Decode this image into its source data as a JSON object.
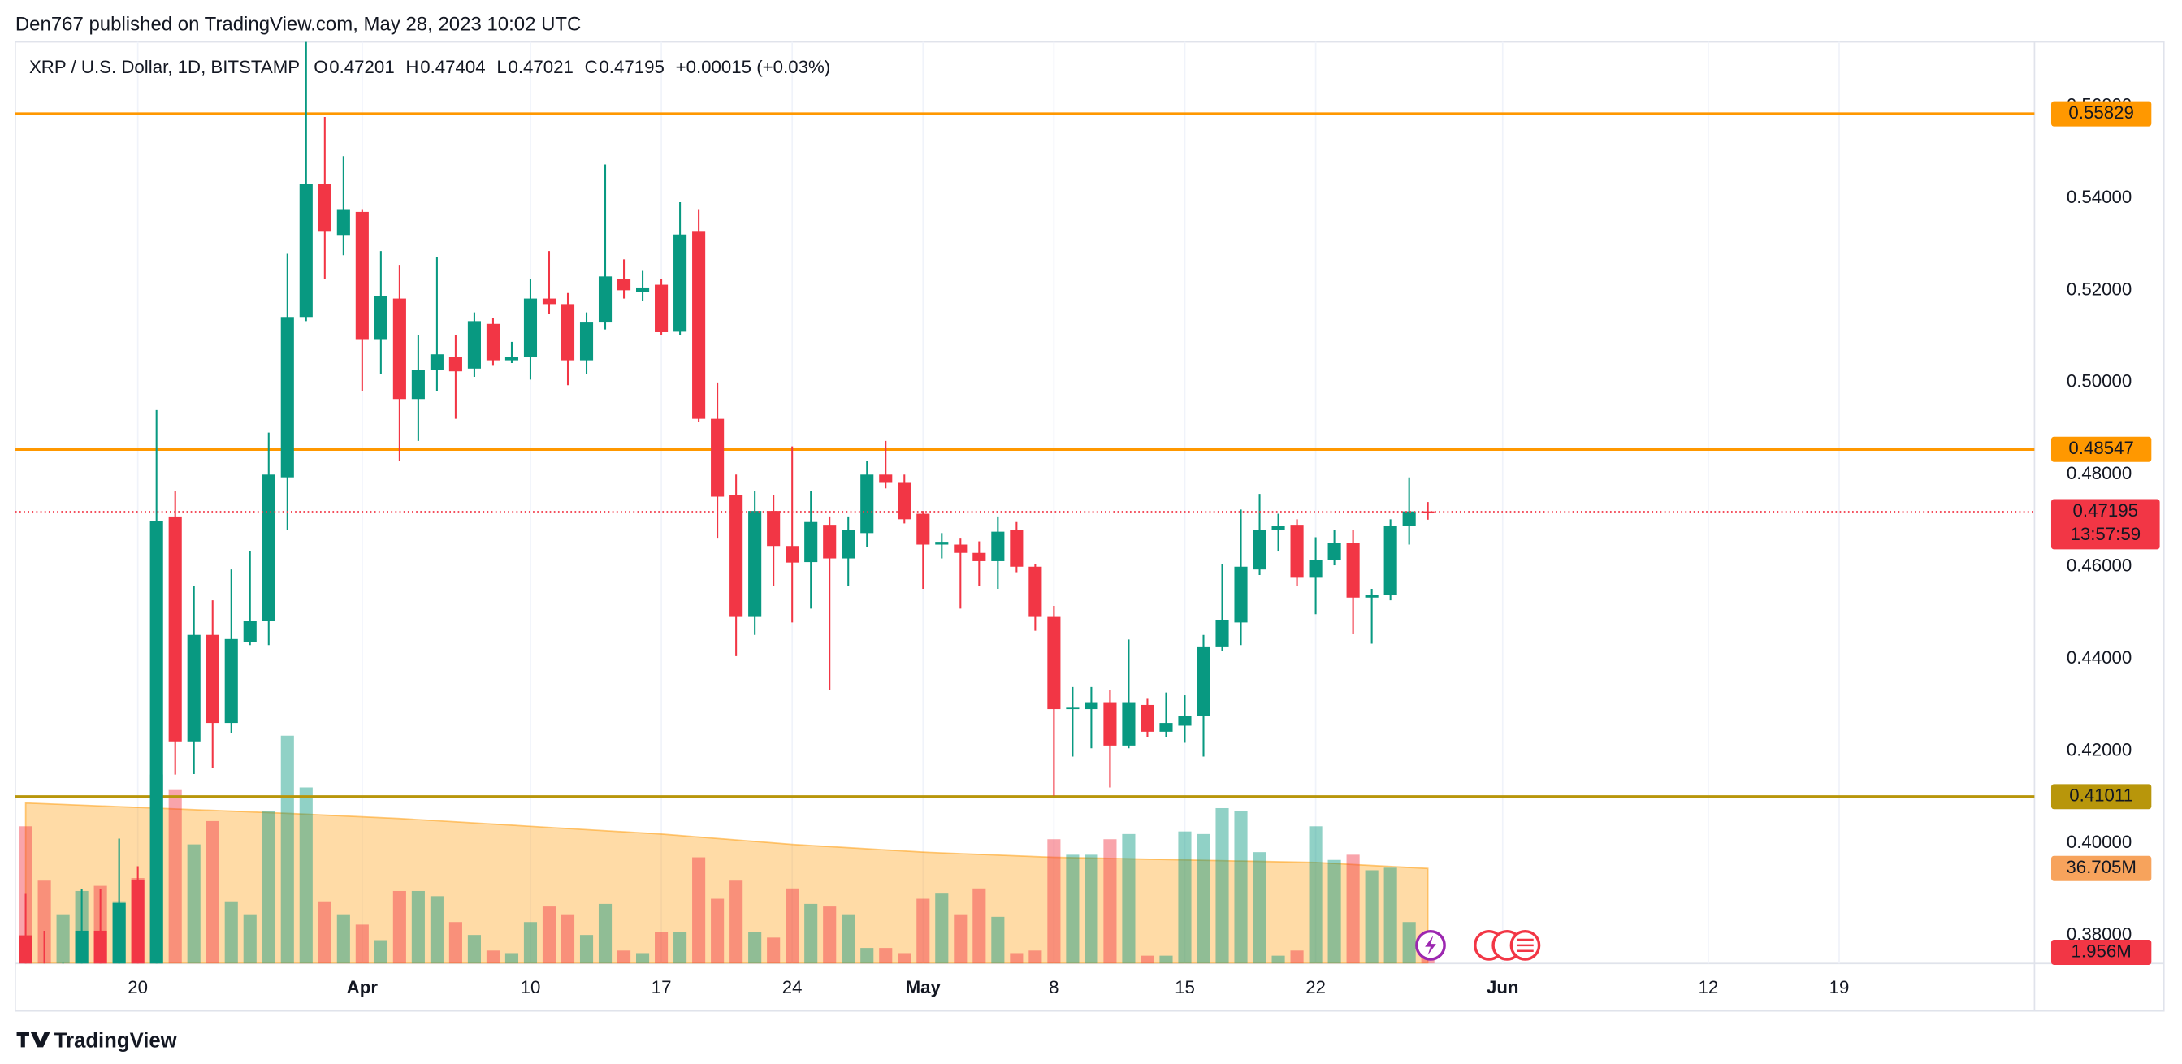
{
  "publisher": "Den767 published on TradingView.com, May 28, 2023 10:02 UTC",
  "brand": "TradingView",
  "chart_data": {
    "type": "candlestick",
    "title": "XRP / U.S. Dollar, 1D, BITSTAMP",
    "ohlc_labels": [
      "O",
      "H",
      "L",
      "C"
    ],
    "change": "+0.00015 (+0.03%)",
    "countdown": "13:57:59",
    "up_color": "#089981",
    "down_color": "#f23645",
    "x": [
      "2023-03-14",
      "2023-03-15",
      "2023-03-16",
      "2023-03-17",
      "2023-03-18",
      "2023-03-19",
      "2023-03-20",
      "2023-03-21",
      "2023-03-22",
      "2023-03-23",
      "2023-03-24",
      "2023-03-25",
      "2023-03-26",
      "2023-03-27",
      "2023-03-28",
      "2023-03-29",
      "2023-03-30",
      "2023-03-31",
      "2023-04-01",
      "2023-04-02",
      "2023-04-03",
      "2023-04-04",
      "2023-04-05",
      "2023-04-06",
      "2023-04-07",
      "2023-04-08",
      "2023-04-09",
      "2023-04-10",
      "2023-04-11",
      "2023-04-12",
      "2023-04-13",
      "2023-04-14",
      "2023-04-15",
      "2023-04-16",
      "2023-04-17",
      "2023-04-18",
      "2023-04-19",
      "2023-04-20",
      "2023-04-21",
      "2023-04-22",
      "2023-04-23",
      "2023-04-24",
      "2023-04-25",
      "2023-04-26",
      "2023-04-27",
      "2023-04-28",
      "2023-04-29",
      "2023-04-30",
      "2023-05-01",
      "2023-05-02",
      "2023-05-03",
      "2023-05-04",
      "2023-05-05",
      "2023-05-06",
      "2023-05-07",
      "2023-05-08",
      "2023-05-09",
      "2023-05-10",
      "2023-05-11",
      "2023-05-12",
      "2023-05-13",
      "2023-05-14",
      "2023-05-15",
      "2023-05-16",
      "2023-05-17",
      "2023-05-18",
      "2023-05-19",
      "2023-05-20",
      "2023-05-21",
      "2023-05-22",
      "2023-05-23",
      "2023-05-24",
      "2023-05-25",
      "2023-05-26",
      "2023-05-27",
      "2023-05-28"
    ],
    "open": [
      0.38,
      0.372,
      0.365,
      0.37,
      0.381,
      0.372,
      0.392,
      0.372,
      0.4709,
      0.4221,
      0.4452,
      0.4261,
      0.4436,
      0.4482,
      0.4794,
      0.5142,
      0.543,
      0.532,
      0.537,
      0.5094,
      0.5182,
      0.4964,
      0.5027,
      0.5055,
      0.503,
      0.5127,
      0.5048,
      0.5055,
      0.5182,
      0.517,
      0.5048,
      0.513,
      0.5224,
      0.5197,
      0.5212,
      0.511,
      0.5327,
      0.4921,
      0.4755,
      0.4491,
      0.4721,
      0.4645,
      0.461,
      0.4691,
      0.4618,
      0.4673,
      0.48,
      0.4782,
      0.4715,
      0.4648,
      0.4648,
      0.463,
      0.4612,
      0.4679,
      0.46,
      0.4491,
      0.4291,
      0.4291,
      0.4306,
      0.4212,
      0.43,
      0.4242,
      0.4255,
      0.4276,
      0.4427,
      0.4479,
      0.4594,
      0.4679,
      0.4691,
      0.4576,
      0.4615,
      0.4652,
      0.4533,
      0.4539,
      0.4688,
      0.47201
    ],
    "high": [
      0.389,
      0.381,
      0.374,
      0.39,
      0.39,
      0.401,
      0.395,
      0.494,
      0.4764,
      0.4558,
      0.4527,
      0.4594,
      0.4633,
      0.4891,
      0.5279,
      0.58,
      0.5576,
      0.5491,
      0.5376,
      0.5285,
      0.5255,
      0.5103,
      0.5273,
      0.5103,
      0.5152,
      0.514,
      0.5088,
      0.5224,
      0.5285,
      0.5194,
      0.5152,
      0.5473,
      0.5267,
      0.5242,
      0.5224,
      0.5391,
      0.5376,
      0.5,
      0.48,
      0.4764,
      0.4755,
      0.4861,
      0.4764,
      0.4709,
      0.4709,
      0.483,
      0.4873,
      0.48,
      0.4721,
      0.4673,
      0.4661,
      0.4655,
      0.4709,
      0.4697,
      0.4606,
      0.4515,
      0.4339,
      0.4339,
      0.4333,
      0.4442,
      0.4315,
      0.4327,
      0.4321,
      0.4452,
      0.4606,
      0.4724,
      0.4758,
      0.4715,
      0.4703,
      0.4664,
      0.4679,
      0.4679,
      0.4552,
      0.4703,
      0.4794,
      0.47404
    ],
    "low": [
      0.365,
      0.36,
      0.358,
      0.366,
      0.368,
      0.368,
      0.37,
      0.368,
      0.4149,
      0.415,
      0.4164,
      0.424,
      0.443,
      0.443,
      0.4679,
      0.5133,
      0.5224,
      0.5276,
      0.4982,
      0.5018,
      0.483,
      0.4873,
      0.4982,
      0.4921,
      0.5012,
      0.5036,
      0.5042,
      0.5006,
      0.5148,
      0.4994,
      0.5018,
      0.5115,
      0.5182,
      0.5176,
      0.5103,
      0.5103,
      0.4915,
      0.4661,
      0.4406,
      0.4452,
      0.4558,
      0.4479,
      0.4509,
      0.4333,
      0.4558,
      0.4642,
      0.477,
      0.4694,
      0.4552,
      0.4618,
      0.4509,
      0.4558,
      0.4552,
      0.4588,
      0.4461,
      0.4103,
      0.4188,
      0.4206,
      0.4121,
      0.4206,
      0.423,
      0.423,
      0.4218,
      0.4188,
      0.4418,
      0.443,
      0.4582,
      0.4633,
      0.4558,
      0.4497,
      0.4603,
      0.4455,
      0.4433,
      0.4527,
      0.4648,
      0.47021
    ],
    "close": [
      0.372,
      0.365,
      0.37,
      0.381,
      0.372,
      0.387,
      0.372,
      0.47,
      0.4221,
      0.4452,
      0.4261,
      0.4443,
      0.4482,
      0.48,
      0.5142,
      0.543,
      0.5327,
      0.5376,
      0.5094,
      0.5188,
      0.4964,
      0.5027,
      0.5061,
      0.5024,
      0.5133,
      0.5048,
      0.5055,
      0.5182,
      0.517,
      0.5048,
      0.513,
      0.523,
      0.52,
      0.5206,
      0.5109,
      0.5321,
      0.4921,
      0.4752,
      0.4491,
      0.4721,
      0.4645,
      0.4609,
      0.4697,
      0.4618,
      0.4679,
      0.48,
      0.4782,
      0.4703,
      0.4648,
      0.4654,
      0.463,
      0.4612,
      0.4676,
      0.46,
      0.4491,
      0.4291,
      0.4294,
      0.4306,
      0.4212,
      0.4306,
      0.4242,
      0.4261,
      0.4276,
      0.4427,
      0.4485,
      0.46,
      0.4679,
      0.4688,
      0.4576,
      0.4615,
      0.4652,
      0.4533,
      0.4539,
      0.4688,
      0.47201,
      0.47195
    ],
    "volume": [
      53,
      32,
      19,
      28,
      30,
      24,
      33,
      73,
      67,
      46,
      55,
      24,
      19,
      59,
      88,
      68,
      24,
      19,
      15,
      9,
      28,
      28,
      26,
      16,
      11,
      5,
      4,
      16,
      22,
      19,
      11,
      23,
      5,
      4,
      12,
      12,
      41,
      25,
      32,
      12,
      10,
      29,
      23,
      22,
      19,
      6,
      6,
      4,
      25,
      27,
      19,
      29,
      18,
      4,
      5,
      48,
      42,
      42,
      48,
      50,
      3,
      3,
      51,
      50,
      60,
      59,
      43,
      3,
      5,
      53,
      40,
      42,
      36,
      37,
      16,
      1.956
    ],
    "volume_last_label": "1.956M",
    "volume_ylim": [
      0,
      356
    ],
    "volume_ma": {
      "color": "#ff9800",
      "x": [
        "2023-03-14",
        "2023-03-21",
        "2023-03-28",
        "2023-04-03",
        "2023-04-10",
        "2023-04-17",
        "2023-04-24",
        "2023-05-01",
        "2023-05-08",
        "2023-05-15",
        "2023-05-22",
        "2023-05-28"
      ],
      "values": [
        62,
        60,
        58,
        56,
        53,
        50,
        46,
        43,
        41,
        40,
        39,
        36.705
      ],
      "last_label": "36.705M"
    },
    "levels": [
      {
        "value": 0.55829,
        "color": "#ff9800"
      },
      {
        "value": 0.48547,
        "color": "#ff9800"
      },
      {
        "value": 0.41011,
        "color": "#b8960b"
      }
    ],
    "xlim": [
      "2023-03-13",
      "2023-06-29"
    ],
    "xticks": [
      {
        "value": "2023-03-20",
        "label": "20"
      },
      {
        "value": "2023-04-01",
        "label": "Apr"
      },
      {
        "value": "2023-04-10",
        "label": "10"
      },
      {
        "value": "2023-04-17",
        "label": "17"
      },
      {
        "value": "2023-04-24",
        "label": "24"
      },
      {
        "value": "2023-05-01",
        "label": "May"
      },
      {
        "value": "2023-05-08",
        "label": "8"
      },
      {
        "value": "2023-05-15",
        "label": "15"
      },
      {
        "value": "2023-05-22",
        "label": "22"
      },
      {
        "value": "2023-06-01",
        "label": "Jun"
      },
      {
        "value": "2023-06-12",
        "label": "12"
      },
      {
        "value": "2023-06-19",
        "label": "19"
      }
    ],
    "ylim": [
      0.3739,
      0.5739
    ],
    "yticks": [
      {
        "value": 0.38,
        "label": "0.38000"
      },
      {
        "value": 0.4,
        "label": "0.40000"
      },
      {
        "value": 0.42,
        "label": "0.42000"
      },
      {
        "value": 0.44,
        "label": "0.44000"
      },
      {
        "value": 0.46,
        "label": "0.46000"
      },
      {
        "value": 0.48,
        "label": "0.48000"
      },
      {
        "value": 0.5,
        "label": "0.50000"
      },
      {
        "value": 0.52,
        "label": "0.52000"
      },
      {
        "value": 0.54,
        "label": "0.54000"
      },
      {
        "value": 0.56,
        "label": "0.56000"
      }
    ],
    "grid": true
  }
}
